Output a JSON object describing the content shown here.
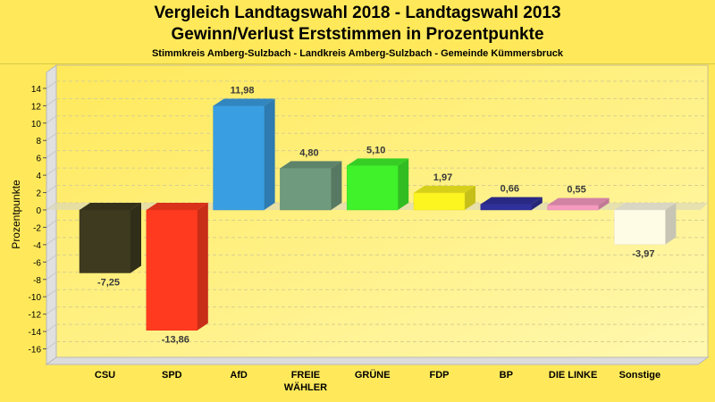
{
  "chart_data": {
    "type": "bar",
    "title": "Vergleich Landtagswahl 2018 - Landtagswahl 2013",
    "subtitle": "Gewinn/Verlust Erststimmen in Prozentpunkte",
    "subtitle2": "Stimmkreis Amberg-Sulzbach - Landkreis Amberg-Sulzbach - Gemeinde Kümmersbruck",
    "xlabel": "",
    "ylabel": "Prozentpunkte",
    "ylim": [
      -17,
      15
    ],
    "yticks": [
      14,
      12,
      10,
      8,
      6,
      4,
      2,
      0,
      -2,
      -4,
      -6,
      -8,
      -10,
      -12,
      -14,
      -16
    ],
    "grid": true,
    "categories": [
      "CSU",
      "SPD",
      "AfD",
      "FREIE WÄHLER",
      "GRÜNE",
      "FDP",
      "BP",
      "DIE LINKE",
      "Sonstige"
    ],
    "category_lines": [
      [
        "CSU"
      ],
      [
        "SPD"
      ],
      [
        "AfD"
      ],
      [
        "FREIE",
        "WÄHLER"
      ],
      [
        "GRÜNE"
      ],
      [
        "FDP"
      ],
      [
        "BP"
      ],
      [
        "DIE LINKE"
      ],
      [
        "Sonstige"
      ]
    ],
    "values": [
      -7.25,
      -13.86,
      11.98,
      4.8,
      5.1,
      1.97,
      0.66,
      0.55,
      -3.97
    ],
    "labels": [
      "-7,25",
      "-13,86",
      "11,98",
      "4,80",
      "5,10",
      "1,97",
      "0,66",
      "0,55",
      "-3,97"
    ],
    "colors": [
      "#3d3a1f",
      "#ff3a1e",
      "#3a9ee2",
      "#6f9a7e",
      "#3ff22a",
      "#fcf520",
      "#30309c",
      "#f79ac0",
      "#fffce6"
    ]
  }
}
